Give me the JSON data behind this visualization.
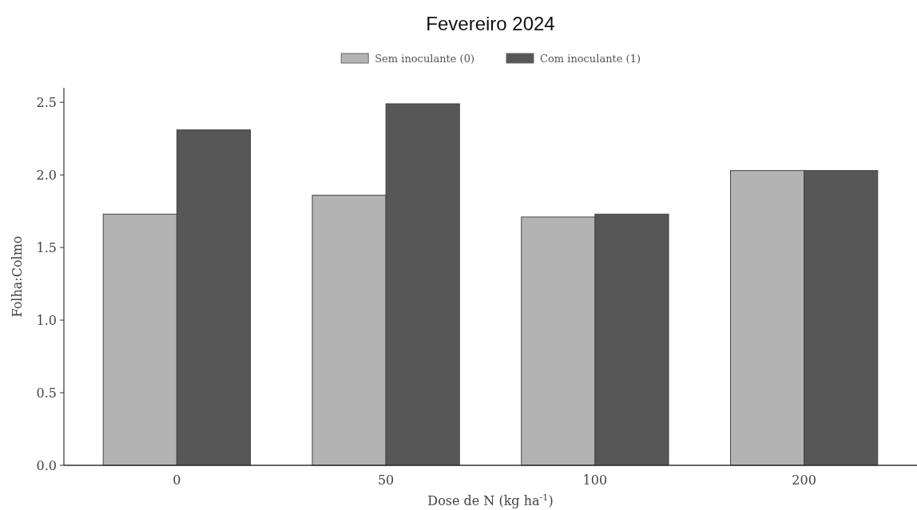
{
  "chart_data": {
    "type": "bar",
    "title": "Fevereiro 2024",
    "xlabel": "Dose de N (kg ha$^{-1}$)",
    "ylabel": "Folha:Colmo",
    "categories": [
      "0",
      "50",
      "100",
      "200"
    ],
    "series": [
      {
        "name": "Sem inoculante (0)",
        "color": "#b3b3b3",
        "values": [
          1.73,
          1.86,
          1.71,
          2.03
        ]
      },
      {
        "name": "Com inoculante (1)",
        "color": "#575757",
        "values": [
          2.31,
          2.49,
          1.73,
          2.03
        ]
      }
    ],
    "ylim": [
      0,
      2.6
    ],
    "yticks": [
      {
        "value": 0,
        "label": "0.0"
      },
      {
        "value": 0.5,
        "label": "0.5"
      },
      {
        "value": 1,
        "label": "1.0"
      },
      {
        "value": 1.5,
        "label": "1.5"
      },
      {
        "value": 2,
        "label": "2.0"
      },
      {
        "value": 2.5,
        "label": "2.5"
      }
    ],
    "grid": false,
    "legend": "top"
  }
}
